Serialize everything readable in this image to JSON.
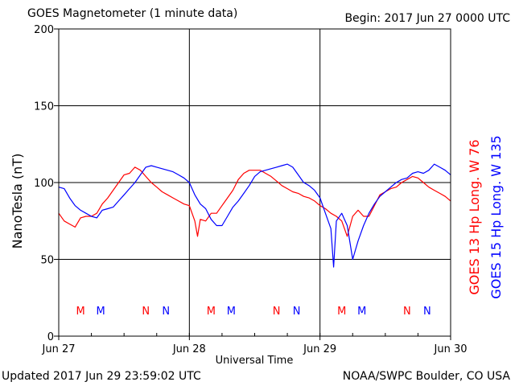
{
  "header": {
    "title": "GOES Magnetometer (1 minute data)",
    "begin": "Begin:  2017 Jun 27 0000 UTC"
  },
  "footer": {
    "updated": "Updated 2017 Jun 29 23:59:02 UTC",
    "credit": "NOAA/SWPC Boulder, CO USA"
  },
  "chart_data": {
    "type": "line",
    "title": "GOES Magnetometer (1 minute data)",
    "xlabel": "Universal Time",
    "ylabel": "NanoTesla (nT)",
    "xlim": [
      0,
      72
    ],
    "ylim": [
      0,
      200
    ],
    "grid": true,
    "x_unit": "hours since 2017 Jun 27 0000 UTC",
    "x_ticks": [
      {
        "x": 0,
        "label": "Jun 27"
      },
      {
        "x": 24,
        "label": "Jun 28"
      },
      {
        "x": 48,
        "label": "Jun 29"
      },
      {
        "x": 72,
        "label": "Jun 30"
      }
    ],
    "y_ticks": [
      0,
      50,
      100,
      150,
      200
    ],
    "series": [
      {
        "name": "GOES 13 Hp  Long. W 76",
        "color": "#ff0000",
        "points": [
          [
            0,
            80
          ],
          [
            1,
            75
          ],
          [
            2,
            73
          ],
          [
            3,
            71
          ],
          [
            4,
            77
          ],
          [
            5,
            78
          ],
          [
            6,
            78
          ],
          [
            7,
            80
          ],
          [
            8,
            86
          ],
          [
            9,
            90
          ],
          [
            10,
            95
          ],
          [
            11,
            100
          ],
          [
            12,
            105
          ],
          [
            13,
            106
          ],
          [
            14,
            110
          ],
          [
            15,
            108
          ],
          [
            16,
            104
          ],
          [
            17,
            100
          ],
          [
            18,
            97
          ],
          [
            19,
            94
          ],
          [
            20,
            92
          ],
          [
            21,
            90
          ],
          [
            22,
            88
          ],
          [
            23,
            86
          ],
          [
            24,
            85
          ],
          [
            25,
            75
          ],
          [
            25.5,
            65
          ],
          [
            26,
            76
          ],
          [
            27,
            75
          ],
          [
            28,
            80
          ],
          [
            29,
            80
          ],
          [
            30,
            85
          ],
          [
            31,
            90
          ],
          [
            32,
            95
          ],
          [
            33,
            102
          ],
          [
            34,
            106
          ],
          [
            35,
            108
          ],
          [
            36,
            108
          ],
          [
            37,
            108
          ],
          [
            38,
            106
          ],
          [
            39,
            104
          ],
          [
            40,
            101
          ],
          [
            41,
            98
          ],
          [
            42,
            96
          ],
          [
            43,
            94
          ],
          [
            44,
            93
          ],
          [
            45,
            91
          ],
          [
            46,
            90
          ],
          [
            47,
            88
          ],
          [
            48,
            85
          ],
          [
            49,
            83
          ],
          [
            50,
            80
          ],
          [
            51,
            78
          ],
          [
            52,
            75
          ],
          [
            53,
            65
          ],
          [
            54,
            78
          ],
          [
            55,
            82
          ],
          [
            56,
            78
          ],
          [
            57,
            78
          ],
          [
            58,
            85
          ],
          [
            59,
            92
          ],
          [
            60,
            94
          ],
          [
            61,
            96
          ],
          [
            62,
            97
          ],
          [
            63,
            100
          ],
          [
            64,
            102
          ],
          [
            65,
            104
          ],
          [
            66,
            103
          ],
          [
            67,
            100
          ],
          [
            68,
            97
          ],
          [
            69,
            95
          ],
          [
            70,
            93
          ],
          [
            71,
            91
          ],
          [
            72,
            88
          ]
        ]
      },
      {
        "name": "GOES 15 Hp  Long. W 135",
        "color": "#0000ff",
        "points": [
          [
            0,
            97
          ],
          [
            1,
            96
          ],
          [
            2,
            90
          ],
          [
            3,
            85
          ],
          [
            4,
            82
          ],
          [
            5,
            80
          ],
          [
            6,
            78
          ],
          [
            7,
            77
          ],
          [
            8,
            82
          ],
          [
            9,
            83
          ],
          [
            10,
            84
          ],
          [
            11,
            88
          ],
          [
            12,
            92
          ],
          [
            13,
            96
          ],
          [
            14,
            100
          ],
          [
            15,
            105
          ],
          [
            16,
            110
          ],
          [
            17,
            111
          ],
          [
            18,
            110
          ],
          [
            19,
            109
          ],
          [
            20,
            108
          ],
          [
            21,
            107
          ],
          [
            22,
            105
          ],
          [
            23,
            103
          ],
          [
            24,
            100
          ],
          [
            25,
            92
          ],
          [
            26,
            86
          ],
          [
            27,
            83
          ],
          [
            28,
            76
          ],
          [
            29,
            72
          ],
          [
            30,
            72
          ],
          [
            31,
            78
          ],
          [
            32,
            84
          ],
          [
            33,
            88
          ],
          [
            34,
            93
          ],
          [
            35,
            98
          ],
          [
            36,
            104
          ],
          [
            37,
            107
          ],
          [
            38,
            108
          ],
          [
            39,
            109
          ],
          [
            40,
            110
          ],
          [
            41,
            111
          ],
          [
            42,
            112
          ],
          [
            43,
            110
          ],
          [
            44,
            105
          ],
          [
            45,
            100
          ],
          [
            46,
            98
          ],
          [
            47,
            95
          ],
          [
            48,
            90
          ],
          [
            49,
            80
          ],
          [
            50,
            70
          ],
          [
            50.5,
            45
          ],
          [
            51,
            75
          ],
          [
            52,
            80
          ],
          [
            53,
            72
          ],
          [
            54,
            50
          ],
          [
            55,
            62
          ],
          [
            56,
            72
          ],
          [
            57,
            80
          ],
          [
            58,
            86
          ],
          [
            59,
            91
          ],
          [
            60,
            94
          ],
          [
            61,
            97
          ],
          [
            62,
            100
          ],
          [
            63,
            102
          ],
          [
            64,
            103
          ],
          [
            65,
            106
          ],
          [
            66,
            107
          ],
          [
            67,
            106
          ],
          [
            68,
            108
          ],
          [
            69,
            112
          ],
          [
            70,
            110
          ],
          [
            71,
            108
          ],
          [
            72,
            105
          ]
        ]
      }
    ],
    "markers": [
      {
        "label": "M",
        "x": 4.0,
        "color": "#ff0000"
      },
      {
        "label": "M",
        "x": 7.7,
        "color": "#0000ff"
      },
      {
        "label": "N",
        "x": 16.0,
        "color": "#ff0000"
      },
      {
        "label": "N",
        "x": 19.7,
        "color": "#0000ff"
      },
      {
        "label": "M",
        "x": 28.0,
        "color": "#ff0000"
      },
      {
        "label": "M",
        "x": 31.7,
        "color": "#0000ff"
      },
      {
        "label": "N",
        "x": 40.0,
        "color": "#ff0000"
      },
      {
        "label": "N",
        "x": 43.7,
        "color": "#0000ff"
      },
      {
        "label": "M",
        "x": 52.0,
        "color": "#ff0000"
      },
      {
        "label": "M",
        "x": 55.7,
        "color": "#0000ff"
      },
      {
        "label": "N",
        "x": 64.0,
        "color": "#ff0000"
      },
      {
        "label": "N",
        "x": 67.7,
        "color": "#0000ff"
      }
    ]
  }
}
